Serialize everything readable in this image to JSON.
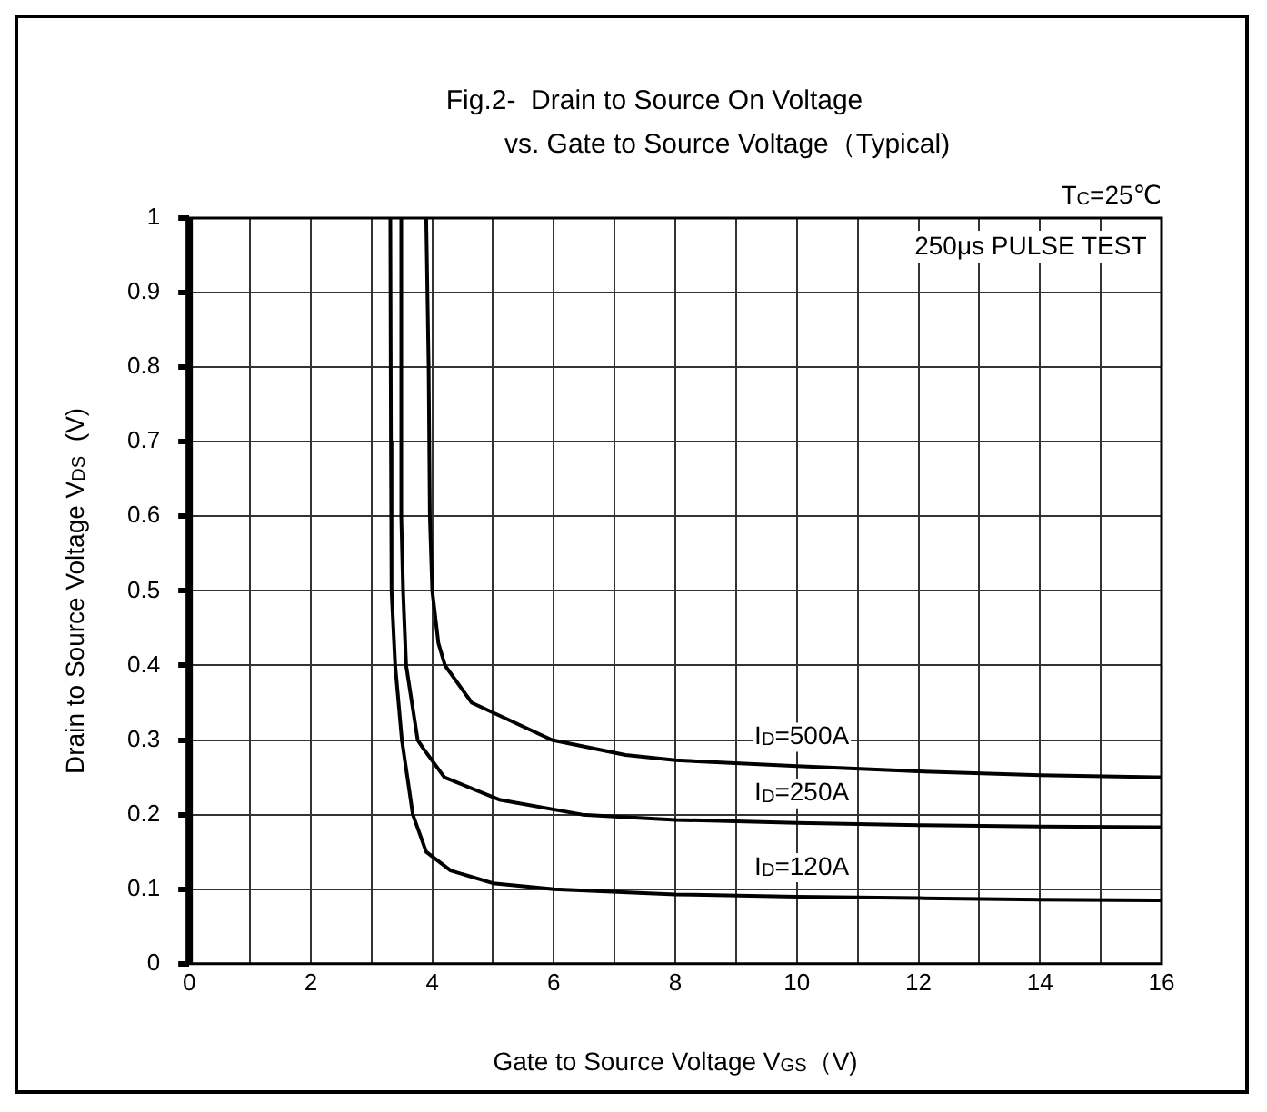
{
  "chart_data": {
    "type": "line",
    "title": "Fig.2-  Drain to Source On Voltage\nvs. Gate to Source Voltage（Typical)",
    "xlabel": "Gate to Source Voltage V$_{GS}$（V)",
    "ylabel": "Drain to Source Voltage V$_{DS}$  (V)",
    "series": [
      {
        "name": "I$_{D}$=500A",
        "color": "#000000",
        "x": [
          3.9,
          3.94,
          3.96,
          4.0,
          4.1,
          4.21,
          4.65,
          5.97,
          7.18,
          8,
          10,
          12,
          14,
          16
        ],
        "values": [
          1,
          0.8,
          0.6,
          0.5,
          0.43,
          0.4,
          0.35,
          0.3,
          0.28,
          0.273,
          0.265,
          0.258,
          0.253,
          0.25
        ]
      },
      {
        "name": "I$_{D}$=250A",
        "color": "#000000",
        "x": [
          3.49,
          3.49,
          3.52,
          3.57,
          3.76,
          3.85,
          4.2,
          5.1,
          6.47,
          8,
          10,
          12,
          14,
          16
        ],
        "values": [
          1,
          0.6,
          0.5,
          0.4,
          0.3,
          0.289,
          0.25,
          0.22,
          0.2,
          0.193,
          0.189,
          0.186,
          0.184,
          0.183
        ]
      },
      {
        "name": "I$_{D}$=120A",
        "color": "#000000",
        "x": [
          3.31,
          3.32,
          3.33,
          3.39,
          3.5,
          3.68,
          3.9,
          4.3,
          5,
          6,
          8,
          10,
          12,
          14,
          16
        ],
        "values": [
          1,
          0.7,
          0.5,
          0.4,
          0.3,
          0.2,
          0.15,
          0.125,
          0.108,
          0.1,
          0.093,
          0.09,
          0.088,
          0.086,
          0.085
        ]
      }
    ],
    "xlim": [
      0,
      16
    ],
    "xticks": [
      0,
      {
        "value": 1,
        "label": null
      },
      2,
      {
        "value": 3,
        "label": null
      },
      4,
      {
        "value": 5,
        "label": null
      },
      6,
      {
        "value": 7,
        "label": null
      },
      8,
      {
        "value": 9,
        "label": null
      },
      10,
      {
        "value": 11,
        "label": null
      },
      12,
      {
        "value": 13,
        "label": null
      },
      14,
      {
        "value": 15,
        "label": null
      },
      16
    ],
    "ylim": [
      0,
      1
    ],
    "yticks": [
      0,
      0.1,
      0.2,
      0.3,
      0.4,
      0.5,
      0.6,
      0.7,
      0.8,
      0.9,
      1
    ],
    "grid": true,
    "legend": false,
    "marker": "none",
    "line_style": "solid",
    "annotations": [
      "T$_{C}$=25℃",
      "250μs PULSE TEST"
    ]
  }
}
